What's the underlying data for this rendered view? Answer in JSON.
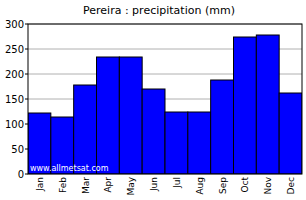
{
  "chart_data": {
    "type": "bar",
    "title": "Pereira : precipitation (mm)",
    "categories": [
      "Jan",
      "Feb",
      "Mar",
      "Apr",
      "May",
      "Jun",
      "Jul",
      "Aug",
      "Sep",
      "Oct",
      "Nov",
      "Dec"
    ],
    "values": [
      122,
      114,
      178,
      234,
      234,
      170,
      124,
      124,
      188,
      274,
      278,
      162
    ],
    "color": "#0000ff",
    "ylim": [
      0,
      300
    ],
    "yticks": [
      0,
      50,
      100,
      150,
      200,
      250,
      300
    ],
    "grid": true,
    "annotations": [
      "www.allmetsat.com"
    ]
  }
}
